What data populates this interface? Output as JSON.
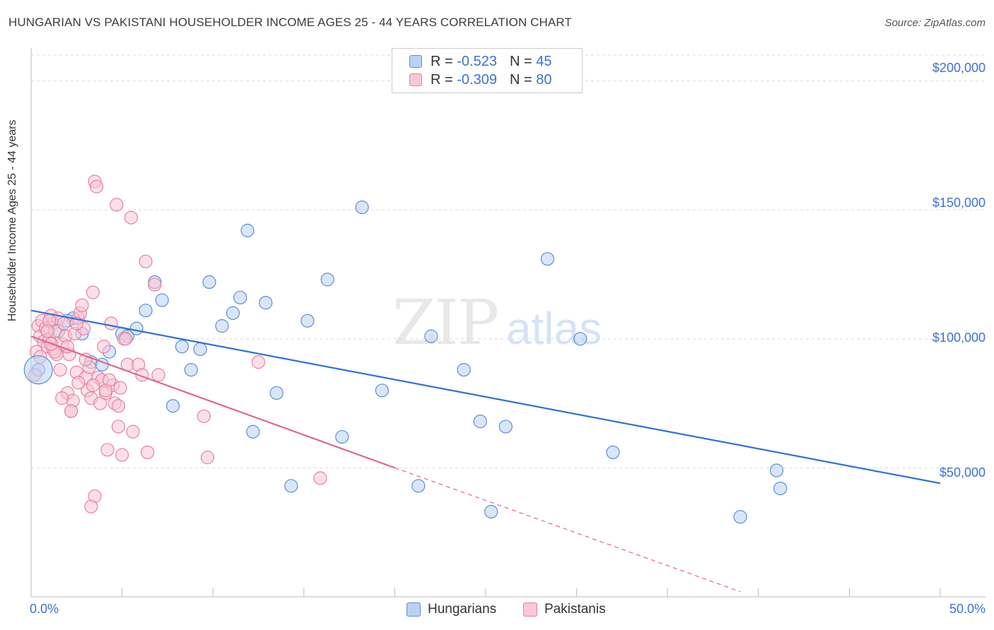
{
  "title": "HUNGARIAN VS PAKISTANI HOUSEHOLDER INCOME AGES 25 - 44 YEARS CORRELATION CHART",
  "source": "Source: ZipAtlas.com",
  "watermark": {
    "zip": "ZIP",
    "atlas": "atlas"
  },
  "legend": {
    "rows": [
      {
        "r_label": "R =",
        "r_value": "-0.523",
        "n_label": "N =",
        "n_value": "45"
      },
      {
        "r_label": "R =",
        "r_value": "-0.309",
        "n_label": "N =",
        "n_value": "80"
      }
    ]
  },
  "bottom_legend": {
    "hungarians": "Hungarians",
    "pakistanis": "Pakistanis"
  },
  "colors": {
    "hungarians_fill": "#b9d2f3",
    "hungarians_stroke": "#5b8fd8",
    "hungarians_line": "#2f72d2",
    "pakistanis_fill": "#f8c7d6",
    "pakistanis_stroke": "#e8809f",
    "pakistanis_line": "#e0648f",
    "axis_text": "#3a72d6",
    "grid": "#dcdcdc"
  },
  "chart_data": {
    "type": "scatter",
    "title": "HUNGARIAN VS PAKISTANI HOUSEHOLDER INCOME AGES 25 - 44 YEARS CORRELATION CHART",
    "xlabel": "",
    "ylabel": "Householder Income Ages 25 - 44 years",
    "xlim": [
      0,
      50
    ],
    "ylim": [
      0,
      210000
    ],
    "x_tick_labels": [
      "0.0%",
      "50.0%"
    ],
    "y_ticks": [
      50000,
      100000,
      150000,
      200000
    ],
    "y_tick_labels": [
      "$50,000",
      "$100,000",
      "$150,000",
      "$200,000"
    ],
    "grid": true,
    "legend_position": "top-center",
    "series": [
      {
        "name": "Hungarians",
        "r": -0.523,
        "n": 45,
        "trend": {
          "x": [
            0,
            50
          ],
          "y": [
            111000,
            44000
          ]
        },
        "points": [
          [
            0.4,
            88000
          ],
          [
            1.2,
            106000
          ],
          [
            1.5,
            103000
          ],
          [
            2.3,
            108000
          ],
          [
            2.8,
            102000
          ],
          [
            3.3,
            91000
          ],
          [
            3.9,
            90000
          ],
          [
            4.3,
            95000
          ],
          [
            5.0,
            102000
          ],
          [
            5.3,
            101000
          ],
          [
            5.8,
            104000
          ],
          [
            6.3,
            111000
          ],
          [
            6.8,
            122000
          ],
          [
            7.2,
            115000
          ],
          [
            7.8,
            74000
          ],
          [
            8.3,
            97000
          ],
          [
            8.8,
            88000
          ],
          [
            9.3,
            96000
          ],
          [
            9.8,
            122000
          ],
          [
            10.5,
            105000
          ],
          [
            11.1,
            110000
          ],
          [
            11.5,
            116000
          ],
          [
            11.9,
            142000
          ],
          [
            12.2,
            64000
          ],
          [
            12.9,
            114000
          ],
          [
            13.5,
            79000
          ],
          [
            14.3,
            43000
          ],
          [
            15.2,
            107000
          ],
          [
            16.3,
            123000
          ],
          [
            17.1,
            62000
          ],
          [
            18.2,
            151000
          ],
          [
            19.3,
            80000
          ],
          [
            21.3,
            43000
          ],
          [
            22.0,
            101000
          ],
          [
            23.8,
            88000
          ],
          [
            24.7,
            68000
          ],
          [
            25.3,
            33000
          ],
          [
            26.1,
            66000
          ],
          [
            28.4,
            131000
          ],
          [
            30.2,
            100000
          ],
          [
            32.0,
            56000
          ],
          [
            39.0,
            31000
          ],
          [
            41.0,
            49000
          ],
          [
            41.2,
            42000
          ],
          [
            2.0,
            107000
          ]
        ]
      },
      {
        "name": "Pakistanis",
        "r": -0.309,
        "n": 80,
        "trend": {
          "x": [
            0,
            20
          ],
          "y": [
            101000,
            50000
          ]
        },
        "trend_dashed": {
          "x": [
            20,
            39
          ],
          "y": [
            50000,
            2000
          ]
        },
        "points": [
          [
            0.2,
            86000
          ],
          [
            0.3,
            95000
          ],
          [
            0.4,
            105000
          ],
          [
            0.5,
            101000
          ],
          [
            0.6,
            107000
          ],
          [
            0.7,
            99000
          ],
          [
            0.8,
            104000
          ],
          [
            0.9,
            97000
          ],
          [
            1.0,
            100000
          ],
          [
            1.1,
            109000
          ],
          [
            1.2,
            96000
          ],
          [
            1.3,
            103000
          ],
          [
            1.4,
            94000
          ],
          [
            1.5,
            108000
          ],
          [
            1.6,
            88000
          ],
          [
            1.7,
            98000
          ],
          [
            1.8,
            106000
          ],
          [
            1.9,
            101000
          ],
          [
            2.0,
            79000
          ],
          [
            2.1,
            94000
          ],
          [
            2.2,
            72000
          ],
          [
            2.3,
            76000
          ],
          [
            2.4,
            102000
          ],
          [
            2.5,
            87000
          ],
          [
            2.6,
            108000
          ],
          [
            2.7,
            110000
          ],
          [
            2.8,
            113000
          ],
          [
            2.9,
            104000
          ],
          [
            3.0,
            85000
          ],
          [
            3.1,
            80000
          ],
          [
            3.2,
            89000
          ],
          [
            3.3,
            77000
          ],
          [
            3.4,
            118000
          ],
          [
            3.5,
            161000
          ],
          [
            3.6,
            159000
          ],
          [
            3.7,
            85000
          ],
          [
            3.8,
            75000
          ],
          [
            3.9,
            84000
          ],
          [
            4.0,
            97000
          ],
          [
            4.1,
            79000
          ],
          [
            4.2,
            57000
          ],
          [
            4.4,
            106000
          ],
          [
            4.5,
            82000
          ],
          [
            4.6,
            75000
          ],
          [
            4.7,
            152000
          ],
          [
            4.8,
            66000
          ],
          [
            4.9,
            81000
          ],
          [
            5.0,
            55000
          ],
          [
            5.1,
            100000
          ],
          [
            5.3,
            90000
          ],
          [
            5.5,
            147000
          ],
          [
            5.6,
            64000
          ],
          [
            5.9,
            90000
          ],
          [
            6.1,
            86000
          ],
          [
            6.3,
            130000
          ],
          [
            6.4,
            56000
          ],
          [
            6.8,
            121000
          ],
          [
            7.0,
            86000
          ],
          [
            3.0,
            92000
          ],
          [
            2.0,
            97000
          ],
          [
            1.0,
            107000
          ],
          [
            0.5,
            93000
          ],
          [
            1.3,
            95000
          ],
          [
            2.6,
            83000
          ],
          [
            3.4,
            82000
          ],
          [
            4.3,
            84000
          ],
          [
            4.8,
            74000
          ],
          [
            5.2,
            100000
          ],
          [
            9.5,
            70000
          ],
          [
            9.7,
            54000
          ],
          [
            12.5,
            91000
          ],
          [
            15.9,
            46000
          ],
          [
            3.5,
            39000
          ],
          [
            3.3,
            35000
          ],
          [
            2.2,
            72000
          ],
          [
            1.7,
            77000
          ],
          [
            0.9,
            103000
          ],
          [
            2.5,
            106000
          ],
          [
            1.1,
            98000
          ],
          [
            4.1,
            80000
          ]
        ]
      }
    ]
  }
}
